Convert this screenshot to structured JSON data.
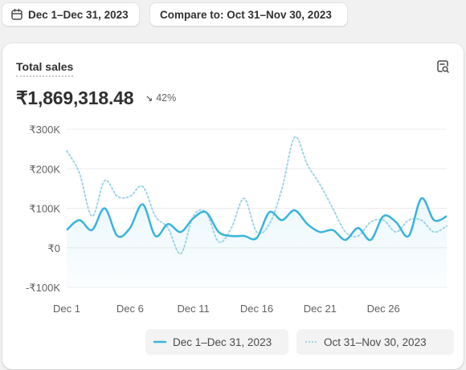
{
  "toolbar": {
    "date_range_label": "Dec 1–Dec 31, 2023",
    "compare_label": "Compare to: Oct 31–Nov 30, 2023"
  },
  "card": {
    "title": "Total sales",
    "total": "₹1,869,318.48",
    "change_arrow": "↘",
    "change_percent": "42%"
  },
  "colors": {
    "current": "#3ab4dc",
    "compare": "#9fd4ea",
    "grid": "#ececec"
  },
  "chart_data": {
    "type": "line",
    "x_tick_labels": [
      "Dec 1",
      "Dec 6",
      "Dec 11",
      "Dec 16",
      "Dec 21",
      "Dec 26"
    ],
    "x_tick_days": [
      1,
      6,
      11,
      16,
      21,
      26
    ],
    "x_range": [
      1,
      31
    ],
    "y_tick_labels": [
      "₹300K",
      "₹200K",
      "₹100K",
      "₹0",
      "-₹100K"
    ],
    "y_tick_values": [
      300000,
      200000,
      100000,
      0,
      -100000
    ],
    "ylim": [
      -100000,
      300000
    ],
    "grid": true,
    "legend_position": "bottom-right",
    "series": [
      {
        "name": "Dec 1–Dec 31, 2023",
        "style": "solid",
        "days": [
          1,
          2,
          3,
          4,
          5,
          6,
          7,
          8,
          9,
          10,
          11,
          12,
          13,
          14,
          15,
          16,
          17,
          18,
          19,
          20,
          21,
          22,
          23,
          24,
          25,
          26,
          27,
          28,
          29,
          30,
          31
        ],
        "values": [
          45000,
          70000,
          45000,
          100000,
          30000,
          50000,
          110000,
          30000,
          60000,
          40000,
          75000,
          90000,
          40000,
          30000,
          30000,
          25000,
          90000,
          70000,
          95000,
          60000,
          40000,
          45000,
          20000,
          50000,
          20000,
          80000,
          65000,
          30000,
          125000,
          70000,
          80000
        ]
      },
      {
        "name": "Oct 31–Nov 30, 2023",
        "style": "dotted",
        "days": [
          1,
          2,
          3,
          4,
          5,
          6,
          7,
          8,
          9,
          10,
          11,
          12,
          13,
          14,
          15,
          16,
          17,
          18,
          19,
          20,
          21,
          22,
          23,
          24,
          25,
          26,
          27,
          28,
          29,
          30,
          31
        ],
        "values": [
          245000,
          190000,
          80000,
          170000,
          130000,
          130000,
          155000,
          80000,
          50000,
          -15000,
          80000,
          90000,
          15000,
          50000,
          125000,
          40000,
          60000,
          150000,
          280000,
          210000,
          160000,
          100000,
          40000,
          30000,
          65000,
          70000,
          40000,
          70000,
          70000,
          40000,
          55000
        ]
      }
    ]
  }
}
